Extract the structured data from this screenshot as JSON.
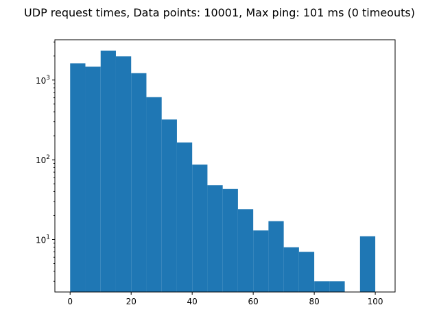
{
  "chart_data": {
    "type": "bar",
    "subtype": "histogram",
    "title": "UDP request times, Data points: 10001, Max ping: 101 ms (0 timeouts)",
    "xlabel": "",
    "ylabel": "",
    "x_scale": "linear",
    "y_scale": "log",
    "xlim": [
      -5,
      106.5
    ],
    "ylim": [
      2.2,
      3200
    ],
    "grid": false,
    "x_ticks": [
      0,
      20,
      40,
      60,
      80,
      100
    ],
    "x_tick_labels": [
      "0",
      "20",
      "40",
      "60",
      "80",
      "100"
    ],
    "y_ticks": [
      10,
      100,
      1000
    ],
    "y_tick_labels": [
      "10",
      "10",
      "10"
    ],
    "y_tick_exponents": [
      "1",
      "2",
      "3"
    ],
    "bin_edges": [
      0,
      5,
      10,
      15,
      20,
      25,
      30,
      35,
      40,
      45,
      50,
      55,
      60,
      65,
      70,
      75,
      80,
      85,
      90,
      95,
      100
    ],
    "values": [
      1620,
      1470,
      2340,
      1980,
      1220,
      610,
      320,
      165,
      87,
      48,
      43,
      24,
      13,
      17,
      8,
      7,
      3,
      3,
      0,
      11
    ],
    "color": "#1f77b4"
  }
}
